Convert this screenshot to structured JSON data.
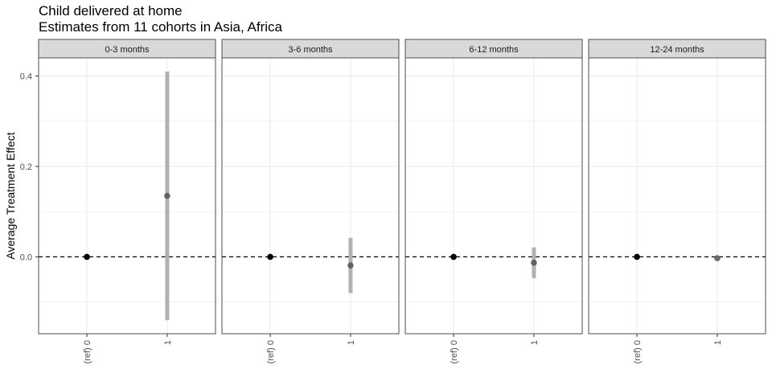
{
  "chart_data": {
    "type": "scatter",
    "title": "Child delivered at home",
    "subtitle": "Estimates from 11 cohorts in Asia, Africa",
    "ylabel": "Average Treatment Effect",
    "xlabel": "",
    "ylim": [
      -0.17,
      0.44
    ],
    "y_ticks": [
      0.4,
      0.2,
      0.0
    ],
    "y_tick_labels": [
      "0.4",
      "0.2",
      "0.0"
    ],
    "x_categories": [
      "(ref) 0",
      "1"
    ],
    "reference_line": 0,
    "grid": true,
    "panels": [
      {
        "label": "0-3 months",
        "points": [
          {
            "x": "(ref) 0",
            "y": 0.0,
            "lower": null,
            "upper": null,
            "ref": true
          },
          {
            "x": "1",
            "y": 0.135,
            "lower": -0.14,
            "upper": 0.41,
            "ref": false
          }
        ]
      },
      {
        "label": "3-6 months",
        "points": [
          {
            "x": "(ref) 0",
            "y": 0.0,
            "lower": null,
            "upper": null,
            "ref": true
          },
          {
            "x": "1",
            "y": -0.019,
            "lower": -0.08,
            "upper": 0.042,
            "ref": false
          }
        ]
      },
      {
        "label": "6-12 months",
        "points": [
          {
            "x": "(ref) 0",
            "y": 0.0,
            "lower": null,
            "upper": null,
            "ref": true
          },
          {
            "x": "1",
            "y": -0.013,
            "lower": -0.047,
            "upper": 0.021,
            "ref": false
          }
        ]
      },
      {
        "label": "12-24 months",
        "points": [
          {
            "x": "(ref) 0",
            "y": 0.0,
            "lower": null,
            "upper": null,
            "ref": true
          },
          {
            "x": "1",
            "y": -0.003,
            "lower": null,
            "upper": null,
            "ref": false
          }
        ]
      }
    ],
    "colors": {
      "ref_point": "#000000",
      "estimate_point": "#555555",
      "ci_bar": "#aaaaaa",
      "strip_fill": "#d9d9d9",
      "panel_border": "#4d4d4d",
      "grid": "#ebebeb"
    }
  }
}
